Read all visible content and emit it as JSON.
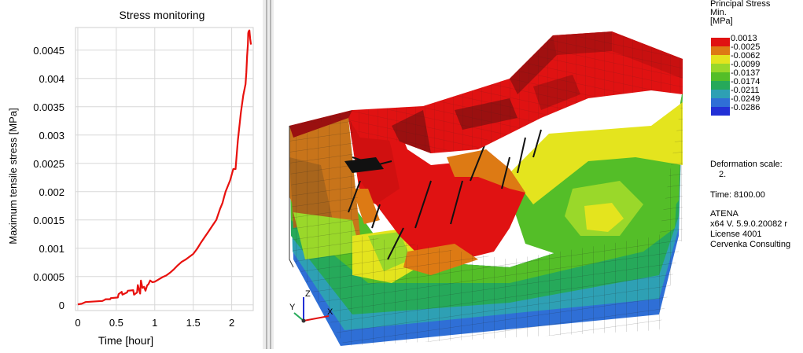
{
  "chart_data": {
    "type": "line",
    "title": "Stress monitoring",
    "xlabel": "Time [hour]",
    "ylabel": "Maximum tensile stress [MPa]",
    "xlim": [
      -0.03,
      2.28
    ],
    "ylim": [
      -0.0001,
      0.0049
    ],
    "x_ticks": [
      0,
      0.5,
      1,
      1.5,
      2
    ],
    "x_tick_labels": [
      "0",
      "0.5",
      "1",
      "1.5",
      "2"
    ],
    "y_ticks": [
      0,
      0.0005,
      0.001,
      0.0015,
      0.002,
      0.0025,
      0.003,
      0.0035,
      0.004,
      0.0045
    ],
    "y_tick_labels": [
      "0",
      "0.0005",
      "0.001",
      "0.0015",
      "0.002",
      "0.0025",
      "0.003",
      "0.0035",
      "0.004",
      "0.0045"
    ],
    "grid": true,
    "series": [
      {
        "color": "#e8110e",
        "x": [
          0,
          0.05,
          0.1,
          0.32,
          0.35,
          0.36,
          0.42,
          0.43,
          0.52,
          0.53,
          0.57,
          0.58,
          0.64,
          0.65,
          0.72,
          0.73,
          0.77,
          0.78,
          0.81,
          0.82,
          0.84,
          0.86,
          0.88,
          0.9,
          0.92,
          0.94,
          0.97,
          1.0,
          1.05,
          1.1,
          1.15,
          1.2,
          1.25,
          1.3,
          1.35,
          1.4,
          1.45,
          1.5,
          1.55,
          1.6,
          1.65,
          1.7,
          1.75,
          1.8,
          1.85,
          1.88,
          1.9,
          1.92,
          1.95,
          1.98,
          2.0,
          2.02,
          2.05,
          2.08,
          2.12,
          2.15,
          2.18,
          2.19,
          2.2,
          2.21,
          2.215,
          2.22,
          2.23,
          2.24,
          2.25
        ],
        "y": [
          1e-05,
          2e-05,
          5e-05,
          7e-05,
          9e-05,
          0.0001,
          0.0001,
          0.00012,
          0.00013,
          0.00019,
          0.00023,
          0.00018,
          0.00022,
          0.00025,
          0.00026,
          0.00018,
          0.00022,
          0.00035,
          0.0002,
          0.00043,
          0.0003,
          0.00032,
          0.00025,
          0.00034,
          0.00037,
          0.00043,
          0.0004,
          0.00041,
          0.00045,
          0.00049,
          0.00052,
          0.00057,
          0.00063,
          0.0007,
          0.00076,
          0.0008,
          0.00085,
          0.0009,
          0.00099,
          0.0011,
          0.0012,
          0.0013,
          0.0014,
          0.0015,
          0.0017,
          0.0018,
          0.0019,
          0.002,
          0.0021,
          0.0022,
          0.0023,
          0.0024,
          0.0024,
          0.0029,
          0.0034,
          0.0037,
          0.0039,
          0.0041,
          0.0044,
          0.0046,
          0.0048,
          0.00483,
          0.00485,
          0.0047,
          0.0046
        ]
      }
    ]
  },
  "legend": {
    "title_lines": [
      "Principal Stress",
      "Min.",
      "[MPa]"
    ],
    "items": [
      {
        "label": "0.0013",
        "color": "#e01212"
      },
      {
        "label": "-0.0025",
        "color": "#dd7a14"
      },
      {
        "label": "-0.0062",
        "color": "#e4e41e"
      },
      {
        "label": "-0.0099",
        "color": "#9ad82a"
      },
      {
        "label": "-0.0137",
        "color": "#54be28"
      },
      {
        "label": "-0.0174",
        "color": "#26a95a"
      },
      {
        "label": "-0.0211",
        "color": "#2ea0b4"
      },
      {
        "label": "-0.0249",
        "color": "#2f6fd6"
      },
      {
        "label": "-0.0286",
        "color": "#2230d6"
      }
    ]
  },
  "info": {
    "deformation_label": "Deformation scale:",
    "deformation_value": "2.",
    "time_text": "Time:  8100.00",
    "app_name": "ATENA",
    "version_text": "x64 V. 5.9.0.20082 r",
    "license_text": "License 4001",
    "company_text": "Cervenka Consulting"
  },
  "axis_triad": {
    "x_label": "X",
    "y_label": "Y",
    "z_label": "Z"
  }
}
